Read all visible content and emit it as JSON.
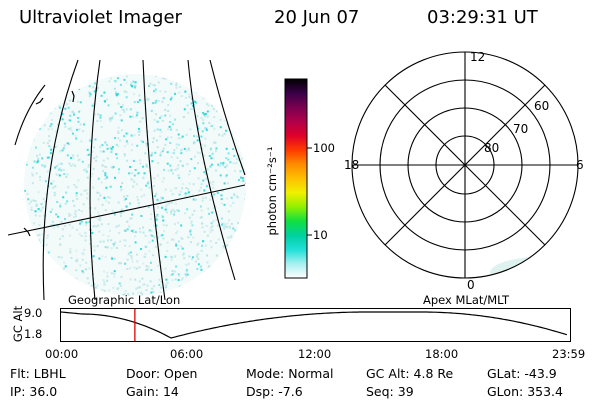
{
  "header": {
    "title": "Ultraviolet Imager",
    "date": "20 Jun 07",
    "time": "03:29:31 UT"
  },
  "colorbar": {
    "unit_label": "photon cm⁻²s⁻¹",
    "ticks": [
      "100",
      "10"
    ],
    "colors": [
      "#000000",
      "#3a0048",
      "#7a0050",
      "#b0004a",
      "#e0002a",
      "#ff3a00",
      "#ff8c00",
      "#ffc000",
      "#f0f000",
      "#90f000",
      "#10e040",
      "#00d0a0",
      "#20e0d8",
      "#a8f0f0",
      "#ffffff"
    ]
  },
  "left_panel": {
    "label": "Geographic Lat/Lon",
    "accent_color": "#22d6dc"
  },
  "right_panel": {
    "label": "Apex MLat/MLT",
    "mlt_labels": [
      "12",
      "18",
      "6",
      "0"
    ],
    "lat_labels": [
      "60",
      "70",
      "80"
    ]
  },
  "altitude_plot": {
    "ylabel": "GC Alt",
    "yticks": [
      "9.0",
      "1.8"
    ],
    "xticks": [
      "00:00",
      "06:00",
      "12:00",
      "18:00",
      "23:59"
    ],
    "current_time_hours": 3.49,
    "marker_color": "#e00000"
  },
  "footer": [
    {
      "label": "Flt:",
      "value": "LBHL"
    },
    {
      "label": "Door:",
      "value": "Open"
    },
    {
      "label": "Mode:",
      "value": "Normal"
    },
    {
      "label": "GC Alt:",
      "value": "4.8 Re"
    },
    {
      "label": "GLat:",
      "value": "-43.9"
    },
    {
      "label": "IP:",
      "value": "36.0"
    },
    {
      "label": "Gain:",
      "value": "14"
    },
    {
      "label": "Dsp:",
      "value": "-7.6"
    },
    {
      "label": "Seq:",
      "value": "39"
    },
    {
      "label": "GLon:",
      "value": "353.4"
    }
  ]
}
